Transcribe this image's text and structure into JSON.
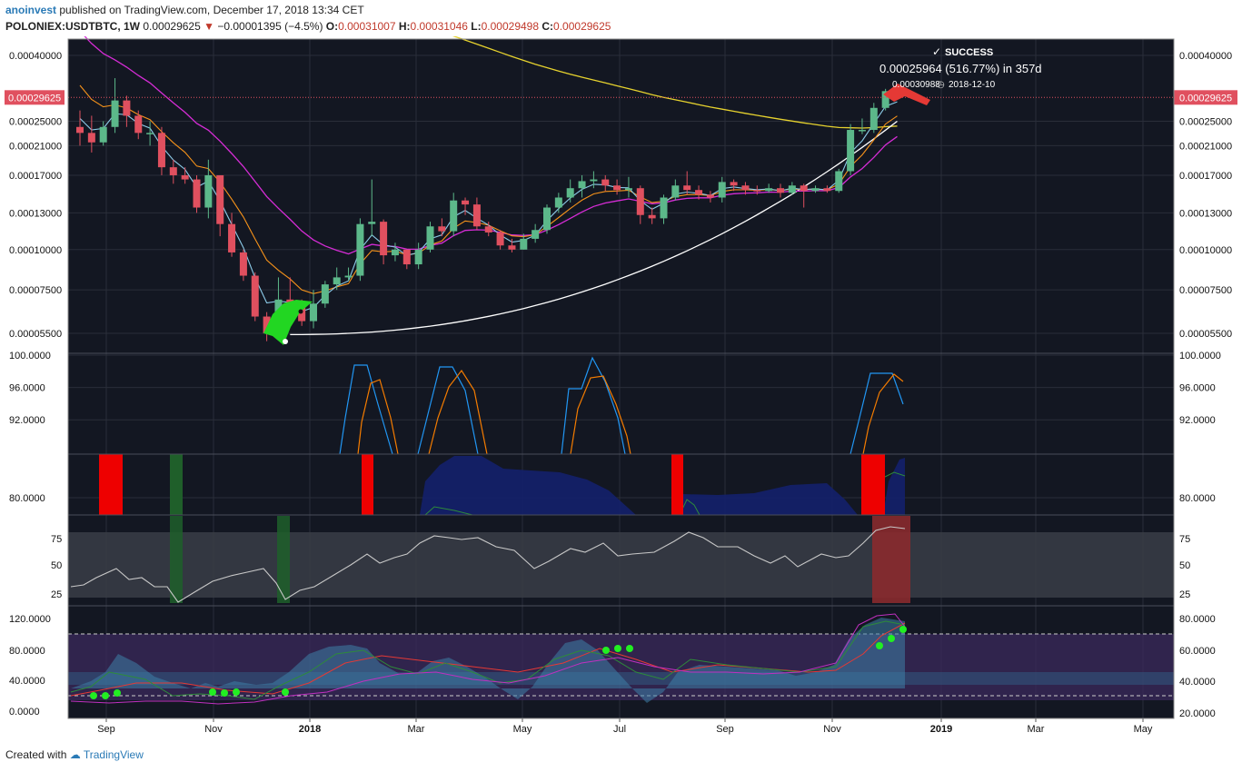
{
  "header": {
    "user": "anoinvest",
    "text": "published on TradingView.com, December 17, 2018 13:34 CET"
  },
  "symbol_line": {
    "symbol": "POLONIEX:USDTBTC, 1W",
    "price": "0.00029625",
    "change": "−0.00001395 (−4.5%)",
    "o_label": "O:",
    "o": "0.00031007",
    "h_label": "H:",
    "h": "0.00031046",
    "l_label": "L:",
    "l": "0.00029498",
    "c_label": "C:",
    "c": "0.00029625"
  },
  "annotation": {
    "success": "SUCCESS",
    "gain": "0.00025964 (516.77%) in 357d",
    "target": "0.00030988",
    "date": "2018-12-10"
  },
  "footer": {
    "text": "Created with",
    "brand": "TradingView"
  },
  "colors": {
    "background": "#131722",
    "up": "#5cb88a",
    "down": "#e0505f",
    "ema_fast": "#8ccbe8",
    "ema_mid": "#f7931a",
    "ema_slow": "#d62cd6",
    "ma_long": "#e6d22e",
    "curve": "#ffffff",
    "stoch_k": "#2196f3",
    "stoch_d": "#f57c00"
  },
  "chart_data": [
    {
      "type": "candlestick",
      "yticks": [
        "0.00040000",
        "0.00025000",
        "0.00021000",
        "0.00017000",
        "0.00013000",
        "0.00010000",
        "0.00007500",
        "0.00005500"
      ],
      "ytick_values": [
        0.0004,
        0.00025,
        0.00021,
        0.00017,
        0.00013,
        0.0001,
        7.5e-05,
        5.5e-05
      ],
      "last_price_label": "0.00029625",
      "last_price": 0.00029625,
      "xticks": [
        "Sep",
        "Nov",
        "2018",
        "Mar",
        "May",
        "Jul",
        "Sep",
        "Nov",
        "2019",
        "Mar",
        "May"
      ],
      "candles": [
        [
          0.00024,
          0.00023,
          0.00027,
          0.00021
        ],
        [
          0.00023,
          0.000215,
          0.00026,
          0.0002
        ],
        [
          0.000215,
          0.00024,
          0.00025,
          0.00021
        ],
        [
          0.00024,
          0.00029,
          0.00034,
          0.00023
        ],
        [
          0.00029,
          0.00026,
          0.0003,
          0.00024
        ],
        [
          0.00026,
          0.00023,
          0.00027,
          0.00022
        ],
        [
          0.00023,
          0.00023,
          0.00025,
          0.00021
        ],
        [
          0.00023,
          0.00018,
          0.00024,
          0.00017
        ],
        [
          0.00018,
          0.00017,
          0.00019,
          0.00016
        ],
        [
          0.00017,
          0.000165,
          0.00018,
          0.00016
        ],
        [
          0.000165,
          0.000135,
          0.00017,
          0.00013
        ],
        [
          0.000135,
          0.00017,
          0.00019,
          0.000125
        ],
        [
          0.00017,
          0.00012,
          0.00017,
          0.00011
        ],
        [
          0.00012,
          9.8e-05,
          0.00013,
          9.5e-05
        ],
        [
          9.8e-05,
          8.3e-05,
          0.0001,
          8e-05
        ],
        [
          8.3e-05,
          6.2e-05,
          8.5e-05,
          6e-05
        ],
        [
          6.2e-05,
          5.5e-05,
          6.4e-05,
          5.2e-05
        ],
        [
          5.5e-05,
          7e-05,
          8.2e-05,
          5.3e-05
        ],
        [
          7e-05,
          6.8e-05,
          8.2e-05,
          6.3e-05
        ],
        [
          6.8e-05,
          6e-05,
          7e-05,
          5.8e-05
        ],
        [
          6e-05,
          6.8e-05,
          7.5e-05,
          5.7e-05
        ],
        [
          6.8e-05,
          7.8e-05,
          8e-05,
          6.6e-05
        ],
        [
          7.8e-05,
          8.2e-05,
          8.8e-05,
          7.5e-05
        ],
        [
          8.2e-05,
          8.3e-05,
          8.8e-05,
          8e-05
        ],
        [
          8.3e-05,
          0.00012,
          0.000125,
          8e-05
        ],
        [
          0.00012,
          0.000122,
          0.000165,
          0.00011
        ],
        [
          0.000122,
          9.6e-05,
          0.000124,
          9e-05
        ],
        [
          9.6e-05,
          0.0001,
          0.000105,
          9.2e-05
        ],
        [
          0.0001,
          9e-05,
          0.0001,
          8.7e-05
        ],
        [
          9e-05,
          0.0001,
          0.000105,
          8.7e-05
        ],
        [
          0.0001,
          0.000118,
          0.000122,
          9.8e-05
        ],
        [
          0.000118,
          0.000114,
          0.000125,
          0.00011
        ],
        [
          0.000114,
          0.000142,
          0.00015,
          0.00011
        ],
        [
          0.000142,
          0.000138,
          0.000145,
          0.000128
        ],
        [
          0.000138,
          0.000118,
          0.000145,
          0.000115
        ],
        [
          0.000118,
          0.000113,
          0.000122,
          0.00011
        ],
        [
          0.000113,
          0.000103,
          0.000115,
          0.0001
        ],
        [
          0.000103,
          0.0001,
          0.000108,
          9.8e-05
        ],
        [
          0.0001,
          0.000108,
          0.000112,
          0.0001
        ],
        [
          0.000108,
          0.000115,
          0.00012,
          0.000105
        ],
        [
          0.000115,
          0.000135,
          0.000138,
          0.000112
        ],
        [
          0.000135,
          0.000145,
          0.00015,
          0.00013
        ],
        [
          0.000145,
          0.000155,
          0.000165,
          0.00014
        ],
        [
          0.000155,
          0.000163,
          0.00017,
          0.000145
        ],
        [
          0.000163,
          0.000165,
          0.000175,
          0.000155
        ],
        [
          0.000165,
          0.000158,
          0.00017,
          0.000152
        ],
        [
          0.000158,
          0.000153,
          0.000165,
          0.000148
        ],
        [
          0.000153,
          0.000155,
          0.000168,
          0.000145
        ],
        [
          0.000155,
          0.000128,
          0.000158,
          0.00012
        ],
        [
          0.000128,
          0.000125,
          0.000135,
          0.00012
        ],
        [
          0.000125,
          0.000145,
          0.000148,
          0.00012
        ],
        [
          0.000145,
          0.000158,
          0.000165,
          0.000142
        ],
        [
          0.000158,
          0.000153,
          0.000175,
          0.000148
        ],
        [
          0.000153,
          0.000148,
          0.000158,
          0.000143
        ],
        [
          0.000148,
          0.000145,
          0.000152,
          0.00014
        ],
        [
          0.000145,
          0.000162,
          0.000168,
          0.00014
        ],
        [
          0.000162,
          0.000158,
          0.000165,
          0.000152
        ],
        [
          0.000158,
          0.000153,
          0.000162,
          0.000148
        ],
        [
          0.000153,
          0.000152,
          0.000158,
          0.000148
        ],
        [
          0.000152,
          0.000155,
          0.00016,
          0.00015
        ],
        [
          0.000155,
          0.00015,
          0.00016,
          0.000145
        ],
        [
          0.00015,
          0.000158,
          0.000162,
          0.000148
        ],
        [
          0.000158,
          0.000152,
          0.00016,
          0.000135
        ],
        [
          0.000152,
          0.000155,
          0.000158,
          0.00015
        ],
        [
          0.000155,
          0.000152,
          0.000158,
          0.00015
        ],
        [
          0.000152,
          0.000175,
          0.000178,
          0.00015
        ],
        [
          0.000175,
          0.000235,
          0.000245,
          0.00017
        ],
        [
          0.000235,
          0.000235,
          0.000255,
          0.000228
        ],
        [
          0.000235,
          0.000275,
          0.000285,
          0.00023
        ],
        [
          0.000275,
          0.00031,
          0.000315,
          0.00027
        ],
        [
          0.00031007,
          0.00029625,
          0.00031046,
          0.00029498
        ]
      ]
    },
    {
      "type": "line",
      "name": "stochastic",
      "yticks": [
        "100.0000",
        "96.0000",
        "92.0000",
        "80.0000"
      ],
      "ytick_values": [
        100,
        96,
        92,
        80
      ]
    },
    {
      "type": "line",
      "name": "oscillator",
      "yticks": [
        "75",
        "50",
        "25"
      ],
      "ytick_values": [
        75,
        50,
        25
      ]
    },
    {
      "type": "line",
      "name": "multi-indicator",
      "left_yticks": [
        "120.0000",
        "80.0000",
        "40.0000",
        "0.0000"
      ],
      "left_ytick_values": [
        120,
        80,
        40,
        0
      ],
      "right_yticks": [
        "80.0000",
        "60.0000",
        "40.0000",
        "20.0000"
      ],
      "right_ytick_values": [
        80,
        60,
        40,
        20
      ]
    }
  ]
}
